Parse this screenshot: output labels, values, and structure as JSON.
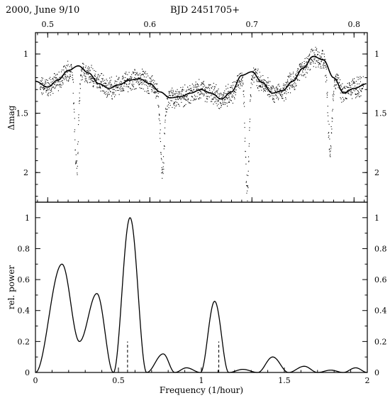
{
  "header": {
    "left": "2000, June 9/10",
    "right": "BJD 2451705+"
  },
  "chart_data": [
    {
      "type": "scatter",
      "name_printed": "",
      "ylabel": "Δmag",
      "top_axis_ticks": [
        "0.5",
        "0.6",
        "0.7",
        "0.8"
      ],
      "top_axis_values": [
        0.5,
        0.6,
        0.7,
        0.8
      ],
      "xlim": [
        0.488,
        0.813
      ],
      "y_ticks": [
        "1",
        "1.5",
        "2"
      ],
      "y_tick_values": [
        1.0,
        1.5,
        2.0
      ],
      "ylim": [
        2.25,
        0.82
      ],
      "y_reversed": true,
      "fit_curve_points": [
        [
          0.488,
          1.23
        ],
        [
          0.5,
          1.28
        ],
        [
          0.51,
          1.22
        ],
        [
          0.52,
          1.14
        ],
        [
          0.53,
          1.1
        ],
        [
          0.54,
          1.16
        ],
        [
          0.55,
          1.25
        ],
        [
          0.56,
          1.29
        ],
        [
          0.57,
          1.26
        ],
        [
          0.58,
          1.22
        ],
        [
          0.59,
          1.21
        ],
        [
          0.6,
          1.25
        ],
        [
          0.61,
          1.32
        ],
        [
          0.62,
          1.37
        ],
        [
          0.63,
          1.36
        ],
        [
          0.64,
          1.33
        ],
        [
          0.65,
          1.3
        ],
        [
          0.66,
          1.33
        ],
        [
          0.67,
          1.38
        ],
        [
          0.68,
          1.32
        ],
        [
          0.69,
          1.18
        ],
        [
          0.7,
          1.15
        ],
        [
          0.71,
          1.24
        ],
        [
          0.72,
          1.33
        ],
        [
          0.73,
          1.31
        ],
        [
          0.74,
          1.23
        ],
        [
          0.75,
          1.12
        ],
        [
          0.76,
          1.02
        ],
        [
          0.77,
          1.05
        ],
        [
          0.78,
          1.2
        ],
        [
          0.79,
          1.33
        ],
        [
          0.8,
          1.29
        ],
        [
          0.813,
          1.25
        ]
      ],
      "eclipses": [
        {
          "x": 0.528,
          "depth": 2.0
        },
        {
          "x": 0.612,
          "depth": 2.05
        },
        {
          "x": 0.695,
          "depth": 2.18
        },
        {
          "x": 0.776,
          "depth": 1.85
        }
      ],
      "point_count": 1800,
      "marker": "small dots",
      "line_color": "#000000"
    },
    {
      "type": "line",
      "xlabel": "Frequency (1/hour)",
      "ylabel": "rel. power",
      "xlim": [
        0,
        2
      ],
      "ylim": [
        0,
        1.1
      ],
      "x_ticks": [
        "0",
        "0.5",
        "1",
        "1.5",
        "2"
      ],
      "x_tick_values": [
        0,
        0.5,
        1,
        1.5,
        2
      ],
      "y_ticks": [
        "0",
        "0.2",
        "0.4",
        "0.6",
        "0.8",
        "1"
      ],
      "y_tick_values": [
        0,
        0.2,
        0.4,
        0.6,
        0.8,
        1.0
      ],
      "peaks": [
        {
          "x": 0.16,
          "y": 0.7
        },
        {
          "x": 0.37,
          "y": 0.51
        },
        {
          "x": 0.57,
          "y": 1.0
        },
        {
          "x": 0.77,
          "y": 0.12
        },
        {
          "x": 0.91,
          "y": 0.03
        },
        {
          "x": 1.08,
          "y": 0.46
        },
        {
          "x": 1.25,
          "y": 0.02
        },
        {
          "x": 1.43,
          "y": 0.1
        },
        {
          "x": 1.62,
          "y": 0.04
        },
        {
          "x": 1.78,
          "y": 0.015
        },
        {
          "x": 1.93,
          "y": 0.03
        }
      ],
      "dashed_markers": [
        {
          "x": 0.555,
          "y": 0.2
        },
        {
          "x": 1.105,
          "y": 0.2
        }
      ],
      "line_color": "#000000"
    }
  ]
}
